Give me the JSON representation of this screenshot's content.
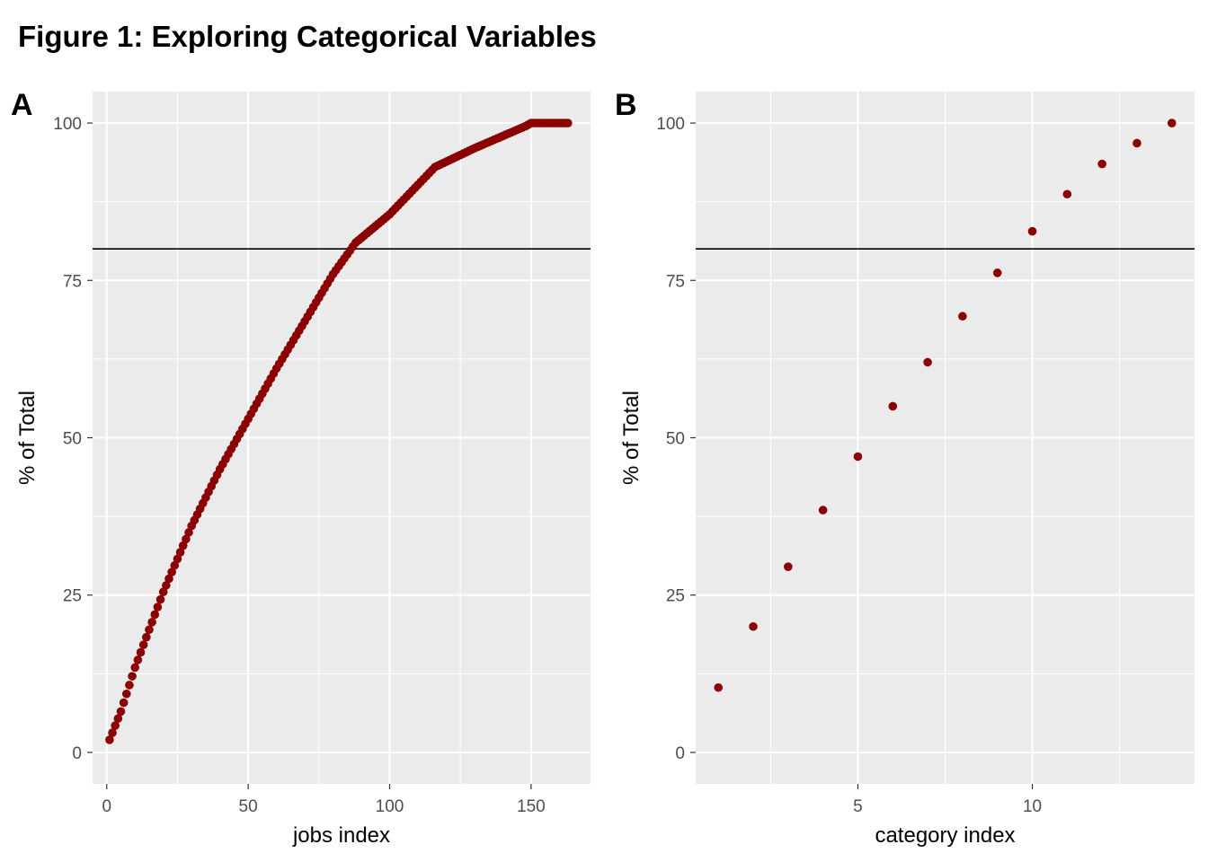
{
  "title": "Figure 1: Exploring Categorical Variables",
  "colors": {
    "point": "#8B0000",
    "panel_bg": "#EBEBEB",
    "grid": "#FFFFFF",
    "hline": "#000000"
  },
  "chart_data": [
    {
      "type": "scatter",
      "tag": "A",
      "title": "",
      "xlabel": "jobs index",
      "ylabel": "% of Total",
      "xlim": [
        -5,
        171
      ],
      "ylim": [
        -5,
        105
      ],
      "x_ticks": [
        0,
        50,
        100,
        150
      ],
      "y_ticks": [
        0,
        25,
        50,
        75,
        100
      ],
      "hline": 80,
      "grid": true,
      "curve_knots": [
        [
          1,
          2
        ],
        [
          5,
          6.5
        ],
        [
          10,
          13.5
        ],
        [
          20,
          25.5
        ],
        [
          30,
          36
        ],
        [
          40,
          45
        ],
        [
          50,
          53
        ],
        [
          60,
          61
        ],
        [
          70,
          68.5
        ],
        [
          80,
          76
        ],
        [
          88,
          81
        ],
        [
          100,
          85.5
        ],
        [
          116,
          93
        ],
        [
          130,
          96
        ],
        [
          148,
          99.5
        ],
        [
          150,
          100
        ],
        [
          163,
          100
        ]
      ],
      "n_points": 163
    },
    {
      "type": "scatter",
      "tag": "B",
      "title": "",
      "xlabel": "category index",
      "ylabel": "% of Total",
      "xlim": [
        0.35,
        14.65
      ],
      "ylim": [
        -5,
        105
      ],
      "x_ticks": [
        5,
        10
      ],
      "y_ticks": [
        0,
        25,
        50,
        75,
        100
      ],
      "hline": 80,
      "grid": true,
      "x": [
        1,
        2,
        3,
        4,
        5,
        6,
        7,
        8,
        9,
        10,
        11,
        12,
        13,
        14
      ],
      "y": [
        10.3,
        20,
        29.5,
        38.5,
        47,
        55,
        62,
        69.3,
        76.2,
        82.8,
        88.7,
        93.5,
        96.8,
        100
      ]
    }
  ]
}
